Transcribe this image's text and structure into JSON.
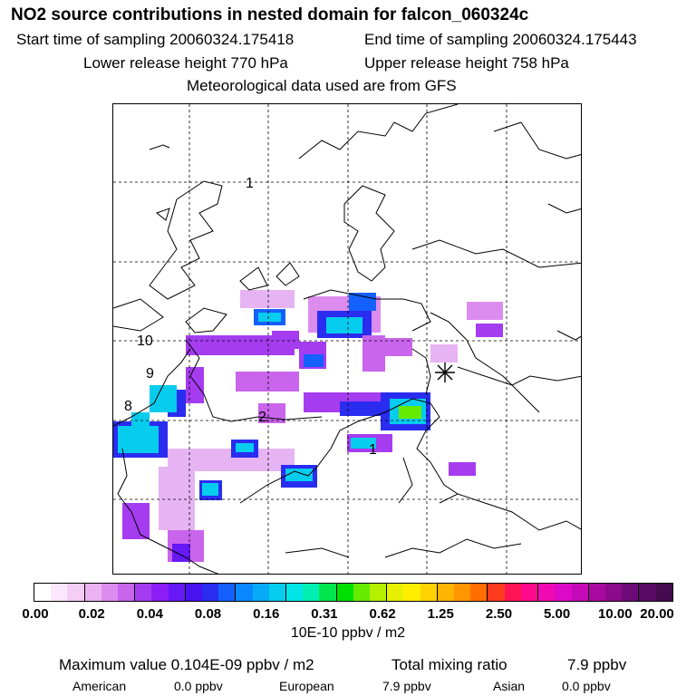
{
  "header": {
    "title": "NO2 source contributions in nested domain for falcon_060324c",
    "start_label": "Start time of sampling 20060324.175418",
    "end_label": "End time of sampling 20060324.175443",
    "lower_label": "Lower release height  770 hPa",
    "upper_label": "Upper release height  758 hPa",
    "meteo_label": "Meteorological data used are from GFS"
  },
  "map": {
    "contour_labels": [
      "10",
      "9",
      "8",
      "2",
      "1",
      "1"
    ],
    "marker_icon": "asterisk-release-marker-icon"
  },
  "colorbar": {
    "ticks": [
      "0.00",
      "0.02",
      "0.04",
      "0.08",
      "0.16",
      "0.31",
      "0.62",
      "1.25",
      "2.50",
      "5.00",
      "10.00",
      "20.00"
    ],
    "colors": [
      "#ffffff",
      "#fbe6fb",
      "#f4cdf6",
      "#eab2f2",
      "#dc8cee",
      "#c964ec",
      "#a53cf0",
      "#8a1ef5",
      "#6618f5",
      "#4812f0",
      "#2a2cf0",
      "#1460ff",
      "#0a88ff",
      "#08aaf6",
      "#06ccee",
      "#00e5e5",
      "#00f0b4",
      "#00e64c",
      "#00e000",
      "#66ea00",
      "#b4f000",
      "#e6f000",
      "#ffee00",
      "#ffd200",
      "#ffb400",
      "#ff9600",
      "#ff6e00",
      "#ff3a1e",
      "#ff1454",
      "#ff0a8c",
      "#f00ab4",
      "#dc0ac8",
      "#c40ab8",
      "#a80aa0",
      "#8c0a8c",
      "#6e0a78",
      "#5a0a64",
      "#460a50"
    ],
    "unit": "10E-10 ppbv / m2"
  },
  "footer": {
    "max_label": "Maximum value  0.104E-09 ppbv / m2",
    "total_label": "Total mixing ratio",
    "total_value": "7.9 ppbv",
    "american_label": "American",
    "american_value": "0.0 ppbv",
    "european_label": "European",
    "european_value": "7.9 ppbv",
    "asian_label": "Asian",
    "asian_value": "0.0 ppbv"
  }
}
